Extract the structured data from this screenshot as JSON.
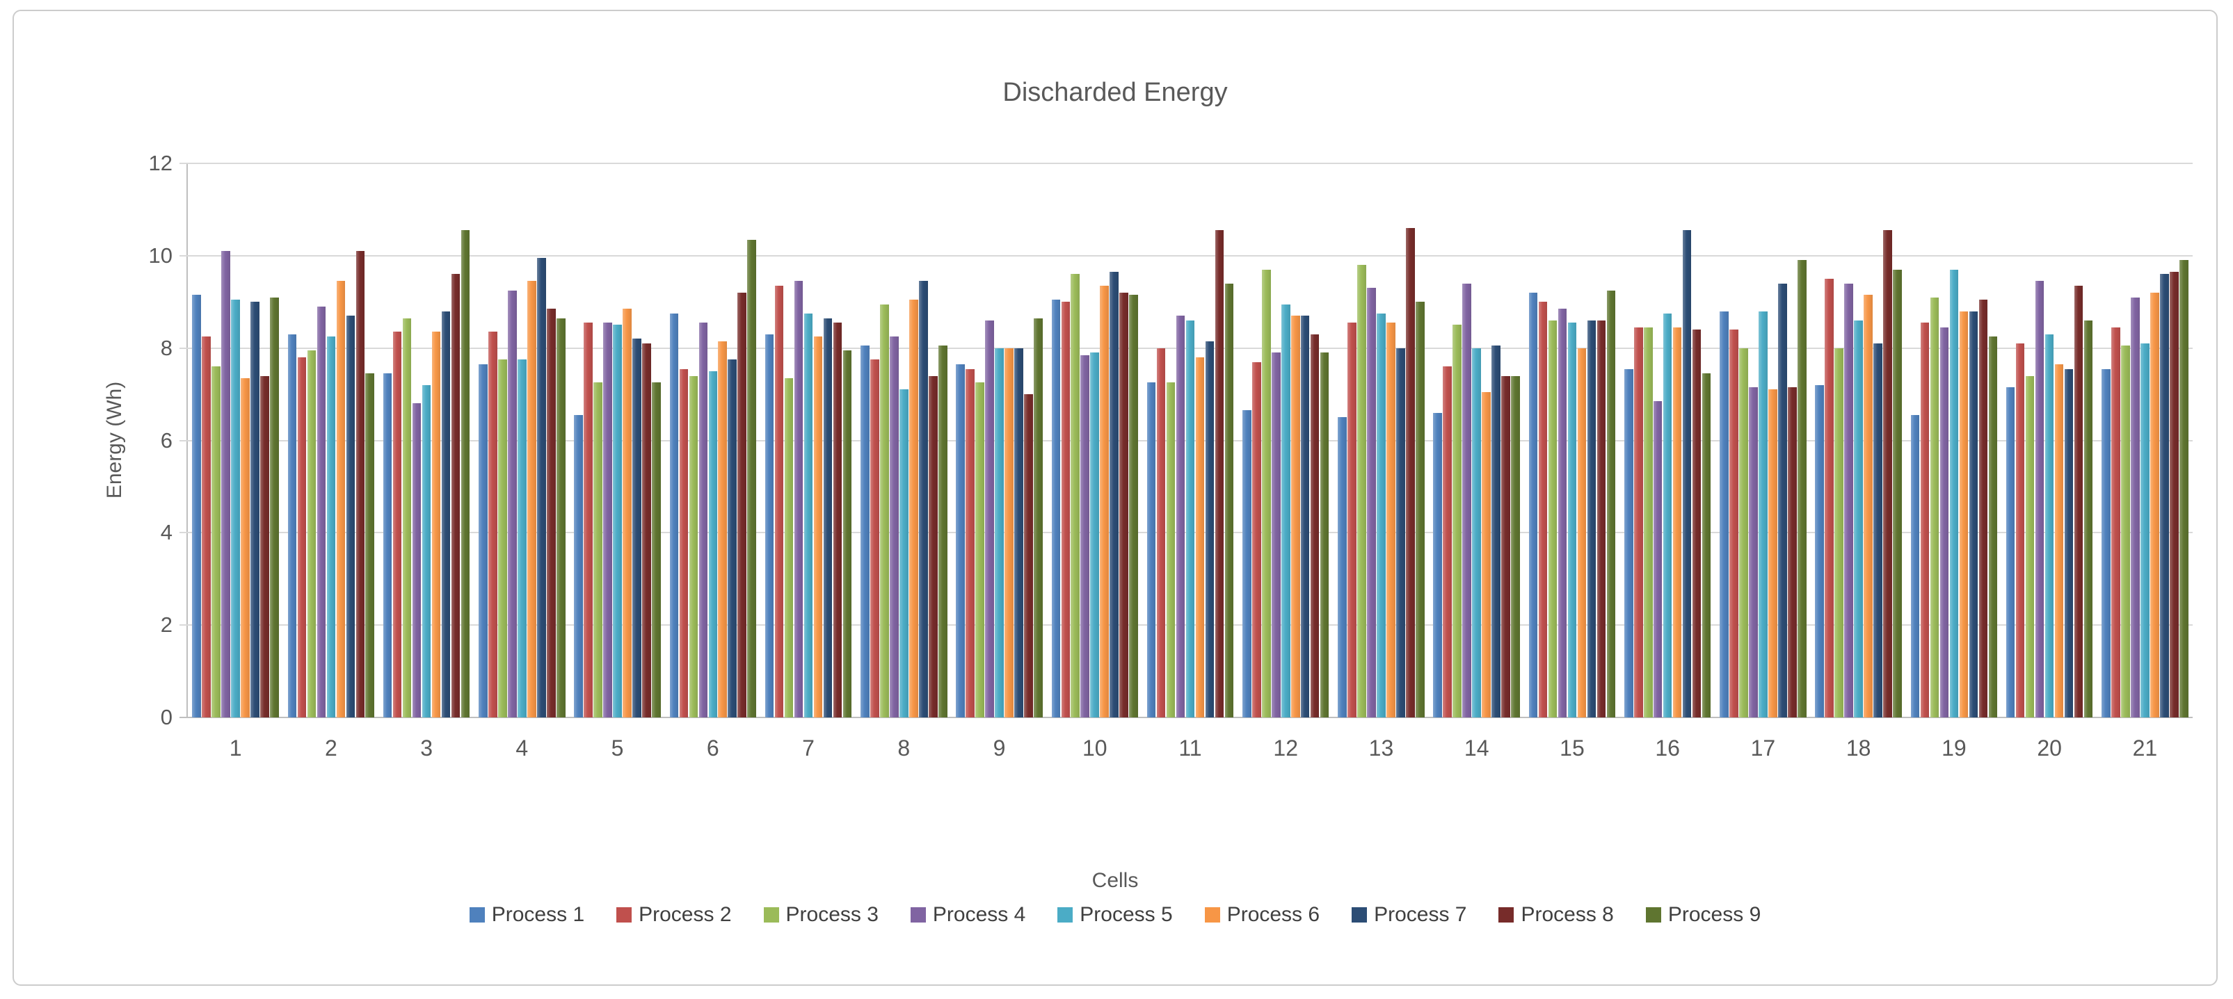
{
  "page": {
    "background": "#ffffff",
    "frame_border_color": "#cccccc",
    "text_color": "#595959",
    "gridline_color": "#d9d9d9",
    "axis_line_color": "#bfbfbf"
  },
  "chart_data": {
    "type": "bar",
    "title": "Discharded Energy",
    "xlabel": "Cells",
    "ylabel": "Energy  (Wh)",
    "ylim": [
      0,
      12
    ],
    "ytick_step": 2,
    "yticks": [
      0,
      2,
      4,
      6,
      8,
      10,
      12
    ],
    "grid": true,
    "legend_position": "bottom",
    "categories": [
      "1",
      "2",
      "3",
      "4",
      "5",
      "6",
      "7",
      "8",
      "9",
      "10",
      "11",
      "12",
      "13",
      "14",
      "15",
      "16",
      "17",
      "18",
      "19",
      "20",
      "21"
    ],
    "series": [
      {
        "name": "Process 1",
        "color": "#4F81BD",
        "values": [
          9.15,
          8.3,
          7.45,
          7.65,
          6.55,
          8.75,
          8.3,
          8.05,
          7.65,
          9.05,
          7.25,
          6.65,
          6.5,
          6.6,
          9.2,
          7.55,
          8.8,
          7.2,
          6.55,
          7.15,
          7.55
        ]
      },
      {
        "name": "Process 2",
        "color": "#C0504D",
        "values": [
          8.25,
          7.8,
          8.35,
          8.35,
          8.55,
          7.55,
          9.35,
          7.75,
          7.55,
          9.0,
          8.0,
          7.7,
          8.55,
          7.6,
          9.0,
          8.45,
          8.4,
          9.5,
          8.55,
          8.1,
          8.45
        ]
      },
      {
        "name": "Process 3",
        "color": "#9BBB59",
        "values": [
          7.6,
          7.95,
          8.65,
          7.75,
          7.25,
          7.4,
          7.35,
          8.95,
          7.25,
          9.6,
          7.25,
          9.7,
          9.8,
          8.5,
          8.6,
          8.45,
          8.0,
          8.0,
          9.1,
          7.4,
          8.05
        ]
      },
      {
        "name": "Process 4",
        "color": "#8064A2",
        "values": [
          10.1,
          8.9,
          6.8,
          9.25,
          8.55,
          8.55,
          9.45,
          8.25,
          8.6,
          7.85,
          8.7,
          7.9,
          9.3,
          9.4,
          8.85,
          6.85,
          7.15,
          9.4,
          8.45,
          9.45,
          9.1
        ]
      },
      {
        "name": "Process 5",
        "color": "#4BACC6",
        "values": [
          9.05,
          8.25,
          7.2,
          7.75,
          8.5,
          7.5,
          8.75,
          7.1,
          8.0,
          7.9,
          8.6,
          8.95,
          8.75,
          8.0,
          8.55,
          8.75,
          8.8,
          8.6,
          9.7,
          8.3,
          8.1
        ]
      },
      {
        "name": "Process 6",
        "color": "#F79646",
        "values": [
          7.35,
          9.45,
          8.35,
          9.45,
          8.85,
          8.15,
          8.25,
          9.05,
          8.0,
          9.35,
          7.8,
          8.7,
          8.55,
          7.05,
          8.0,
          8.45,
          7.1,
          9.15,
          8.8,
          7.65,
          9.2
        ]
      },
      {
        "name": "Process 7",
        "color": "#2C4D75",
        "values": [
          9.0,
          8.7,
          8.8,
          9.95,
          8.2,
          7.75,
          8.65,
          9.45,
          8.0,
          9.65,
          8.15,
          8.7,
          8.0,
          8.05,
          8.6,
          10.55,
          9.4,
          8.1,
          8.8,
          7.55,
          9.6
        ]
      },
      {
        "name": "Process 8",
        "color": "#772C2A",
        "values": [
          7.4,
          10.1,
          9.6,
          8.85,
          8.1,
          9.2,
          8.55,
          7.4,
          7.0,
          9.2,
          10.55,
          8.3,
          10.6,
          7.4,
          8.6,
          8.4,
          7.15,
          10.55,
          9.05,
          9.35,
          9.65
        ]
      },
      {
        "name": "Process 9",
        "color": "#5F7530",
        "values": [
          9.1,
          7.45,
          10.55,
          8.65,
          7.25,
          10.35,
          7.95,
          8.05,
          8.65,
          9.15,
          9.4,
          7.9,
          9.0,
          7.4,
          9.25,
          7.45,
          9.9,
          9.7,
          8.25,
          8.6,
          9.9
        ]
      }
    ]
  }
}
